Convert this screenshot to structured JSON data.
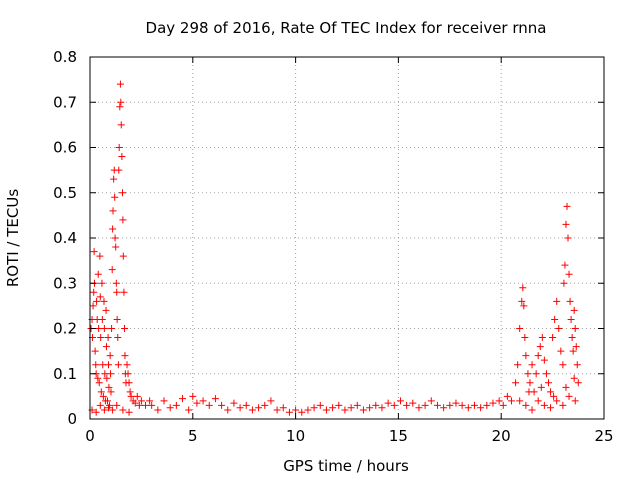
{
  "chart_data": {
    "type": "scatter",
    "title": "Day 298 of 2016, Rate Of TEC Index for receiver rnna",
    "xlabel": "GPS time / hours",
    "ylabel": "ROTI / TECUs",
    "xlim": [
      0,
      25
    ],
    "ylim": [
      0,
      0.8
    ],
    "xticks": [
      0,
      5,
      10,
      15,
      20,
      25
    ],
    "yticks": [
      0,
      0.1,
      0.2,
      0.3,
      0.4,
      0.5,
      0.6,
      0.7,
      0.8
    ],
    "xtick_labels": [
      "0",
      "5",
      "10",
      "15",
      "20",
      "25"
    ],
    "ytick_labels": [
      "0",
      "0.1",
      "0.2",
      "0.3",
      "0.4",
      "0.5",
      "0.6",
      "0.7",
      "0.8"
    ],
    "grid": true,
    "marker": "+",
    "color": "#ff0000",
    "points": [
      [
        0.05,
        0.2
      ],
      [
        0.1,
        0.22
      ],
      [
        0.12,
        0.18
      ],
      [
        0.15,
        0.25
      ],
      [
        0.18,
        0.28
      ],
      [
        0.2,
        0.37
      ],
      [
        0.22,
        0.3
      ],
      [
        0.25,
        0.15
      ],
      [
        0.28,
        0.12
      ],
      [
        0.3,
        0.1
      ],
      [
        0.32,
        0.26
      ],
      [
        0.35,
        0.22
      ],
      [
        0.38,
        0.09
      ],
      [
        0.4,
        0.32
      ],
      [
        0.42,
        0.2
      ],
      [
        0.45,
        0.08
      ],
      [
        0.48,
        0.36
      ],
      [
        0.5,
        0.27
      ],
      [
        0.52,
        0.18
      ],
      [
        0.55,
        0.06
      ],
      [
        0.58,
        0.3
      ],
      [
        0.6,
        0.22
      ],
      [
        0.62,
        0.12
      ],
      [
        0.65,
        0.05
      ],
      [
        0.68,
        0.26
      ],
      [
        0.7,
        0.2
      ],
      [
        0.72,
        0.1
      ],
      [
        0.75,
        0.04
      ],
      [
        0.78,
        0.24
      ],
      [
        0.8,
        0.16
      ],
      [
        0.82,
        0.09
      ],
      [
        0.85,
        0.04
      ],
      [
        0.88,
        0.18
      ],
      [
        0.9,
        0.12
      ],
      [
        0.92,
        0.07
      ],
      [
        0.95,
        0.03
      ],
      [
        0.98,
        0.14
      ],
      [
        1.0,
        0.1
      ],
      [
        1.02,
        0.06
      ],
      [
        1.05,
        0.2
      ],
      [
        1.08,
        0.33
      ],
      [
        1.1,
        0.42
      ],
      [
        1.12,
        0.46
      ],
      [
        1.15,
        0.53
      ],
      [
        1.18,
        0.55
      ],
      [
        1.2,
        0.49
      ],
      [
        1.22,
        0.4
      ],
      [
        1.25,
        0.38
      ],
      [
        1.28,
        0.3
      ],
      [
        1.3,
        0.28
      ],
      [
        1.32,
        0.22
      ],
      [
        1.35,
        0.18
      ],
      [
        1.38,
        0.12
      ],
      [
        1.4,
        0.55
      ],
      [
        1.42,
        0.6
      ],
      [
        1.45,
        0.69
      ],
      [
        1.48,
        0.74
      ],
      [
        1.5,
        0.7
      ],
      [
        1.52,
        0.65
      ],
      [
        1.55,
        0.58
      ],
      [
        1.58,
        0.5
      ],
      [
        1.6,
        0.44
      ],
      [
        1.62,
        0.36
      ],
      [
        1.65,
        0.28
      ],
      [
        1.68,
        0.2
      ],
      [
        1.7,
        0.14
      ],
      [
        1.72,
        0.1
      ],
      [
        1.75,
        0.08
      ],
      [
        1.8,
        0.12
      ],
      [
        1.85,
        0.1
      ],
      [
        1.9,
        0.08
      ],
      [
        1.95,
        0.06
      ],
      [
        2.0,
        0.05
      ],
      [
        2.1,
        0.04
      ],
      [
        2.2,
        0.035
      ],
      [
        2.3,
        0.05
      ],
      [
        2.4,
        0.03
      ],
      [
        2.5,
        0.04
      ],
      [
        2.7,
        0.03
      ],
      [
        2.9,
        0.04
      ],
      [
        0.1,
        0.02
      ],
      [
        0.3,
        0.015
      ],
      [
        0.5,
        0.03
      ],
      [
        0.7,
        0.02
      ],
      [
        0.9,
        0.025
      ],
      [
        1.1,
        0.02
      ],
      [
        1.3,
        0.03
      ],
      [
        1.6,
        0.02
      ],
      [
        1.9,
        0.015
      ],
      [
        3.0,
        0.03
      ],
      [
        3.3,
        0.02
      ],
      [
        3.6,
        0.04
      ],
      [
        3.9,
        0.025
      ],
      [
        4.2,
        0.03
      ],
      [
        4.5,
        0.045
      ],
      [
        4.8,
        0.02
      ],
      [
        5.0,
        0.05
      ],
      [
        5.2,
        0.035
      ],
      [
        5.5,
        0.04
      ],
      [
        5.8,
        0.03
      ],
      [
        6.1,
        0.045
      ],
      [
        6.4,
        0.03
      ],
      [
        6.7,
        0.02
      ],
      [
        7.0,
        0.035
      ],
      [
        7.3,
        0.025
      ],
      [
        7.6,
        0.03
      ],
      [
        7.9,
        0.02
      ],
      [
        8.2,
        0.025
      ],
      [
        8.5,
        0.03
      ],
      [
        8.8,
        0.04
      ],
      [
        9.1,
        0.02
      ],
      [
        9.4,
        0.025
      ],
      [
        9.7,
        0.015
      ],
      [
        10.0,
        0.02
      ],
      [
        10.3,
        0.015
      ],
      [
        10.6,
        0.02
      ],
      [
        10.9,
        0.025
      ],
      [
        11.2,
        0.03
      ],
      [
        11.5,
        0.02
      ],
      [
        11.8,
        0.025
      ],
      [
        12.1,
        0.03
      ],
      [
        12.4,
        0.02
      ],
      [
        12.7,
        0.025
      ],
      [
        13.0,
        0.03
      ],
      [
        13.3,
        0.02
      ],
      [
        13.6,
        0.025
      ],
      [
        13.9,
        0.03
      ],
      [
        14.2,
        0.025
      ],
      [
        14.5,
        0.035
      ],
      [
        14.8,
        0.03
      ],
      [
        15.1,
        0.04
      ],
      [
        15.4,
        0.03
      ],
      [
        15.7,
        0.035
      ],
      [
        16.0,
        0.025
      ],
      [
        16.3,
        0.03
      ],
      [
        16.6,
        0.04
      ],
      [
        16.9,
        0.03
      ],
      [
        17.2,
        0.025
      ],
      [
        17.5,
        0.03
      ],
      [
        17.8,
        0.035
      ],
      [
        18.1,
        0.03
      ],
      [
        18.4,
        0.025
      ],
      [
        18.7,
        0.03
      ],
      [
        19.0,
        0.025
      ],
      [
        19.3,
        0.03
      ],
      [
        19.6,
        0.035
      ],
      [
        19.9,
        0.04
      ],
      [
        20.1,
        0.03
      ],
      [
        20.3,
        0.05
      ],
      [
        20.5,
        0.04
      ],
      [
        20.7,
        0.08
      ],
      [
        20.8,
        0.12
      ],
      [
        20.9,
        0.2
      ],
      [
        21.0,
        0.26
      ],
      [
        21.05,
        0.29
      ],
      [
        21.1,
        0.25
      ],
      [
        21.15,
        0.18
      ],
      [
        21.2,
        0.14
      ],
      [
        21.3,
        0.1
      ],
      [
        21.4,
        0.08
      ],
      [
        21.5,
        0.12
      ],
      [
        21.6,
        0.06
      ],
      [
        21.7,
        0.1
      ],
      [
        21.8,
        0.14
      ],
      [
        21.9,
        0.16
      ],
      [
        22.0,
        0.18
      ],
      [
        22.1,
        0.13
      ],
      [
        22.2,
        0.1
      ],
      [
        22.3,
        0.08
      ],
      [
        22.4,
        0.06
      ],
      [
        22.5,
        0.18
      ],
      [
        22.6,
        0.22
      ],
      [
        22.7,
        0.26
      ],
      [
        22.8,
        0.2
      ],
      [
        22.9,
        0.15
      ],
      [
        23.0,
        0.12
      ],
      [
        23.05,
        0.3
      ],
      [
        23.1,
        0.34
      ],
      [
        23.15,
        0.43
      ],
      [
        23.2,
        0.47
      ],
      [
        23.25,
        0.4
      ],
      [
        23.3,
        0.32
      ],
      [
        23.35,
        0.26
      ],
      [
        23.4,
        0.22
      ],
      [
        23.45,
        0.18
      ],
      [
        23.5,
        0.15
      ],
      [
        23.55,
        0.24
      ],
      [
        23.6,
        0.2
      ],
      [
        23.65,
        0.16
      ],
      [
        23.7,
        0.12
      ],
      [
        23.75,
        0.08
      ],
      [
        21.2,
        0.03
      ],
      [
        21.5,
        0.02
      ],
      [
        21.8,
        0.04
      ],
      [
        22.1,
        0.03
      ],
      [
        22.4,
        0.025
      ],
      [
        22.7,
        0.04
      ],
      [
        23.0,
        0.03
      ],
      [
        23.3,
        0.05
      ],
      [
        23.6,
        0.04
      ],
      [
        20.9,
        0.04
      ],
      [
        21.35,
        0.06
      ],
      [
        21.95,
        0.07
      ],
      [
        22.55,
        0.05
      ],
      [
        23.15,
        0.07
      ],
      [
        23.55,
        0.09
      ]
    ]
  }
}
